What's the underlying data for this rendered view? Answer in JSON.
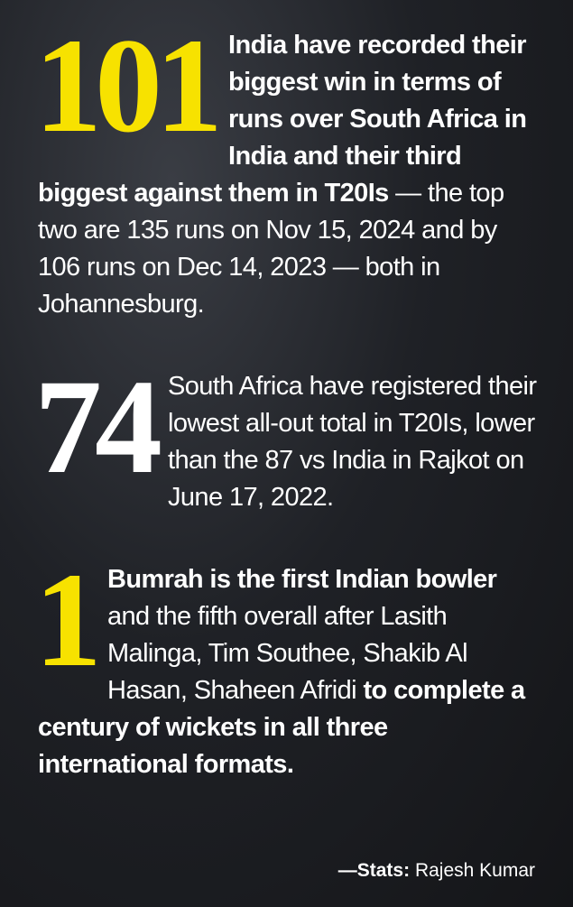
{
  "items": [
    {
      "number": "101",
      "number_color": "#f7e200",
      "segments": [
        {
          "text": "India have recorded their biggest win in terms of runs over South Africa in India and their third biggest against them in T20Is",
          "bold": true
        },
        {
          "text": " — the top two are 135 runs on Nov 15, 2024 and by 106 runs on Dec 14, 2023 — both in Johannesburg.",
          "bold": false
        }
      ]
    },
    {
      "number": "74",
      "number_color": "#ffffff",
      "segments": [
        {
          "text": "South Africa have registered their lowest all-out total in T20Is, lower than the 87 vs India in Rajkot on June 17, 2022.",
          "bold": false
        }
      ]
    },
    {
      "number": "1",
      "number_color": "#f7e200",
      "segments": [
        {
          "text": "Bumrah is the first Indian bowler",
          "bold": true
        },
        {
          "text": " and the fifth overall after Lasith Malinga, Tim Southee, Shakib Al Hasan, Shaheen Afridi ",
          "bold": false
        },
        {
          "text": "to complete a century of wickets in all three international formats.",
          "bold": true
        }
      ]
    }
  ],
  "credit": [
    {
      "text": "—Stats:",
      "bold": true
    },
    {
      "text": " Rajesh Kumar",
      "bold": false
    }
  ]
}
